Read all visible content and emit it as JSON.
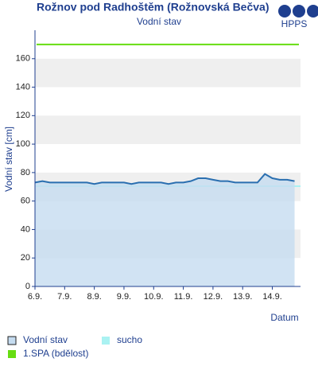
{
  "chart_data": {
    "type": "line",
    "title": "Rožnov pod Radhoštěm (Rožnovská Bečva)",
    "subtitle": "Vodní stav",
    "logo": "HPPS",
    "y_label": "Vodní stav [cm]",
    "x_label": "Datum",
    "x": [
      6,
      6.25,
      6.5,
      6.75,
      7,
      7.25,
      7.5,
      7.75,
      8,
      8.25,
      8.5,
      8.75,
      9,
      9.25,
      9.5,
      9.75,
      10,
      10.25,
      10.5,
      10.75,
      11,
      11.25,
      11.5,
      11.75,
      12,
      12.25,
      12.5,
      12.75,
      13,
      13.25,
      13.5,
      13.75,
      14,
      14.25,
      14.5,
      14.75
    ],
    "series": [
      {
        "name": "Vodní stav",
        "color": "#2a6fb0",
        "fill": "#c5dcf0",
        "values": [
          73,
          74,
          73,
          73,
          73,
          73,
          73,
          73,
          72,
          73,
          73,
          73,
          73,
          72,
          73,
          73,
          73,
          73,
          72,
          73,
          73,
          74,
          76,
          76,
          75,
          74,
          74,
          73,
          73,
          73,
          73,
          79,
          76,
          75,
          75,
          74
        ]
      }
    ],
    "thresholds": [
      {
        "name": "sucho",
        "value": 71,
        "color": "#aaf2f2"
      },
      {
        "name": "1.SPA (bdělost)",
        "value": 170,
        "color": "#66dd11"
      }
    ],
    "xlim": [
      6,
      14.95
    ],
    "xticks": [
      {
        "value": 6,
        "label": "6.9."
      },
      {
        "value": 7,
        "label": "7.9."
      },
      {
        "value": 8,
        "label": "8.9."
      },
      {
        "value": 9,
        "label": "9.9."
      },
      {
        "value": 10,
        "label": "10.9."
      },
      {
        "value": 11,
        "label": "11.9."
      },
      {
        "value": 12,
        "label": "12.9."
      },
      {
        "value": 13,
        "label": "13.9."
      },
      {
        "value": 14,
        "label": "14.9."
      }
    ],
    "ylim": [
      0,
      180
    ],
    "yticks": [
      0,
      20,
      40,
      60,
      80,
      100,
      120,
      140,
      160
    ],
    "grid": true
  }
}
